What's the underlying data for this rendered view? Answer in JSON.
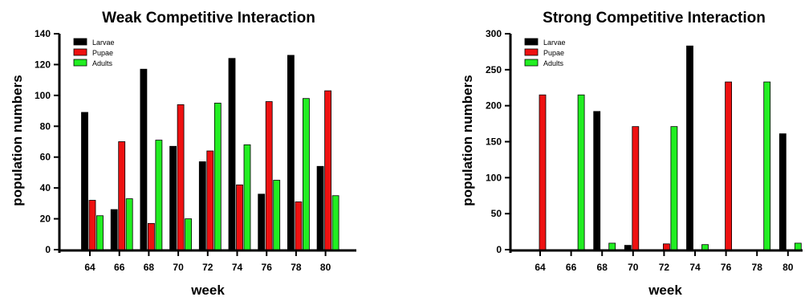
{
  "chart_data": [
    {
      "type": "bar",
      "title": "Weak Competitive Interaction",
      "xlabel": "week",
      "ylabel": "population numbers",
      "categories": [
        "64",
        "66",
        "68",
        "70",
        "72",
        "74",
        "76",
        "78",
        "80"
      ],
      "ylim": [
        0,
        140
      ],
      "yticks": [
        0,
        20,
        40,
        60,
        80,
        100,
        120,
        140
      ],
      "legend_position": "top-left",
      "series": [
        {
          "name": "Larvae",
          "color": "#000000",
          "values": [
            89,
            26,
            117,
            67,
            57,
            124,
            36,
            126,
            54
          ]
        },
        {
          "name": "Pupae",
          "color": "#ee1111",
          "values": [
            32,
            70,
            17,
            94,
            64,
            42,
            96,
            31,
            103
          ]
        },
        {
          "name": "Adults",
          "color": "#22ee22",
          "values": [
            22,
            33,
            71,
            20,
            95,
            68,
            45,
            98,
            35
          ]
        }
      ]
    },
    {
      "type": "bar",
      "title": "Strong Competitive Interaction",
      "xlabel": "week",
      "ylabel": "population numbers",
      "categories": [
        "64",
        "66",
        "68",
        "70",
        "72",
        "74",
        "76",
        "78",
        "80"
      ],
      "ylim": [
        0,
        300
      ],
      "yticks": [
        0,
        50,
        100,
        150,
        200,
        250,
        300
      ],
      "legend_position": "top-left",
      "series": [
        {
          "name": "Larvae",
          "color": "#000000",
          "values": [
            0,
            0,
            192,
            6,
            0,
            283,
            0,
            0,
            161
          ]
        },
        {
          "name": "Pupae",
          "color": "#ee1111",
          "values": [
            215,
            0,
            0,
            171,
            8,
            0,
            233,
            0,
            0
          ]
        },
        {
          "name": "Adults",
          "color": "#22ee22",
          "values": [
            0,
            215,
            9,
            0,
            171,
            7,
            0,
            233,
            9
          ]
        }
      ]
    }
  ]
}
